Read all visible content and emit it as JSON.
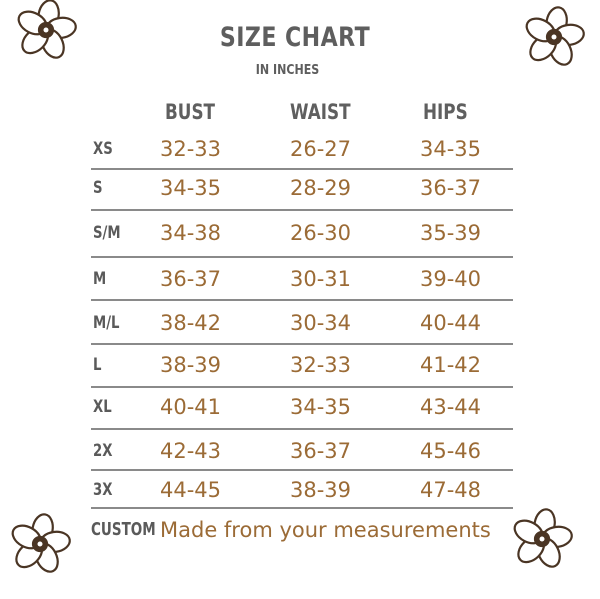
{
  "title": "SIZE CHART",
  "subtitle": "IN INCHES",
  "columns": [
    "BUST",
    "WAIST",
    "HIPS"
  ],
  "rows": [
    {
      "size": "XS",
      "bust": "32-33",
      "waist": "26-27",
      "hips": "34-35"
    },
    {
      "size": "S",
      "bust": "34-35",
      "waist": "28-29",
      "hips": "36-37"
    },
    {
      "size": "S/M",
      "bust": "34-38",
      "waist": "26-30",
      "hips": "35-39"
    },
    {
      "size": "M",
      "bust": "36-37",
      "waist": "30-31",
      "hips": "39-40"
    },
    {
      "size": "M/L",
      "bust": "38-42",
      "waist": "30-34",
      "hips": "40-44"
    },
    {
      "size": "L",
      "bust": "38-39",
      "waist": "32-33",
      "hips": "41-42"
    },
    {
      "size": "XL",
      "bust": "40-41",
      "waist": "34-35",
      "hips": "43-44"
    },
    {
      "size": "2X",
      "bust": "42-43",
      "waist": "36-37",
      "hips": "45-46"
    },
    {
      "size": "3X",
      "bust": "44-45",
      "waist": "38-39",
      "hips": "47-48"
    }
  ],
  "custom": {
    "label": "CUSTOM",
    "text": "Made from your measurements"
  },
  "colors": {
    "label": "#5e5e5e",
    "value": "#9b6b36",
    "flower": "#4a3524"
  },
  "decorations": [
    "flower-icon",
    "flower-icon",
    "flower-icon",
    "flower-icon"
  ]
}
